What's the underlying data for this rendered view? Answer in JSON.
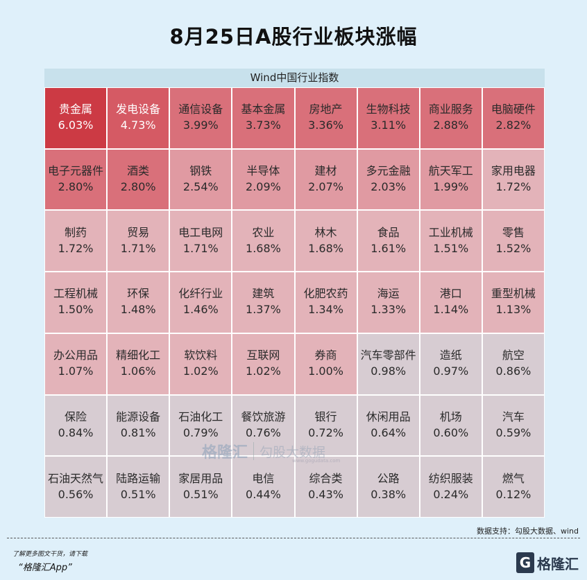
{
  "title": "8月25日A股行业板块涨幅",
  "chart_data": {
    "type": "table",
    "header": "Wind中国行业指数",
    "columns": 8,
    "cells": [
      {
        "name": "贵金属",
        "value": "6.03%"
      },
      {
        "name": "发电设备",
        "value": "4.73%"
      },
      {
        "name": "通信设备",
        "value": "3.99%"
      },
      {
        "name": "基本金属",
        "value": "3.73%"
      },
      {
        "name": "房地产",
        "value": "3.36%"
      },
      {
        "name": "生物科技",
        "value": "3.11%"
      },
      {
        "name": "商业服务",
        "value": "2.88%"
      },
      {
        "name": "电脑硬件",
        "value": "2.82%"
      },
      {
        "name": "电子元器件",
        "value": "2.80%"
      },
      {
        "name": "酒类",
        "value": "2.80%"
      },
      {
        "name": "钢铁",
        "value": "2.54%"
      },
      {
        "name": "半导体",
        "value": "2.09%"
      },
      {
        "name": "建材",
        "value": "2.07%"
      },
      {
        "name": "多元金融",
        "value": "2.03%"
      },
      {
        "name": "航天军工",
        "value": "1.99%"
      },
      {
        "name": "家用电器",
        "value": "1.72%"
      },
      {
        "name": "制药",
        "value": "1.72%"
      },
      {
        "name": "贸易",
        "value": "1.71%"
      },
      {
        "name": "电工电网",
        "value": "1.71%"
      },
      {
        "name": "农业",
        "value": "1.68%"
      },
      {
        "name": "林木",
        "value": "1.68%"
      },
      {
        "name": "食品",
        "value": "1.61%"
      },
      {
        "name": "工业机械",
        "value": "1.51%"
      },
      {
        "name": "零售",
        "value": "1.52%"
      },
      {
        "name": "工程机械",
        "value": "1.50%"
      },
      {
        "name": "环保",
        "value": "1.48%"
      },
      {
        "name": "化纤行业",
        "value": "1.46%"
      },
      {
        "name": "建筑",
        "value": "1.37%"
      },
      {
        "name": "化肥农药",
        "value": "1.34%"
      },
      {
        "name": "海运",
        "value": "1.33%"
      },
      {
        "name": "港口",
        "value": "1.14%"
      },
      {
        "name": "重型机械",
        "value": "1.13%"
      },
      {
        "name": "办公用品",
        "value": "1.07%"
      },
      {
        "name": "精细化工",
        "value": "1.06%"
      },
      {
        "name": "软饮料",
        "value": "1.02%"
      },
      {
        "name": "互联网",
        "value": "1.02%"
      },
      {
        "name": "券商",
        "value": "1.00%"
      },
      {
        "name": "汽车零部件",
        "value": "0.98%"
      },
      {
        "name": "造纸",
        "value": "0.97%"
      },
      {
        "name": "航空",
        "value": "0.86%"
      },
      {
        "name": "保险",
        "value": "0.84%"
      },
      {
        "name": "能源设备",
        "value": "0.81%"
      },
      {
        "name": "石油化工",
        "value": "0.79%"
      },
      {
        "name": "餐饮旅游",
        "value": "0.76%"
      },
      {
        "name": "银行",
        "value": "0.72%"
      },
      {
        "name": "休闲用品",
        "value": "0.64%"
      },
      {
        "name": "机场",
        "value": "0.60%"
      },
      {
        "name": "汽车",
        "value": "0.59%"
      },
      {
        "name": "石油天然气",
        "value": "0.56%"
      },
      {
        "name": "陆路运输",
        "value": "0.51%"
      },
      {
        "name": "家居用品",
        "value": "0.51%"
      },
      {
        "name": "电信",
        "value": "0.44%"
      },
      {
        "name": "综合类",
        "value": "0.43%"
      },
      {
        "name": "公路",
        "value": "0.38%"
      },
      {
        "name": "纺织服装",
        "value": "0.24%"
      },
      {
        "name": "燃气",
        "value": "0.12%"
      }
    ],
    "colors": {
      "top": "#cc3a44",
      "high": "#d9707a",
      "mid": "#e09aa2",
      "low": "#e3b3b9",
      "lowest": "#d7ccd2"
    }
  },
  "watermark": {
    "logo": "格隆汇",
    "text": "勾股大数据",
    "url": "www.gogudata.com"
  },
  "source": "数据支持：勾股大数据、wind",
  "footer": {
    "note": "了解更多图文干货，请下载",
    "app": "“格隆汇App”",
    "brand": "格隆汇"
  }
}
